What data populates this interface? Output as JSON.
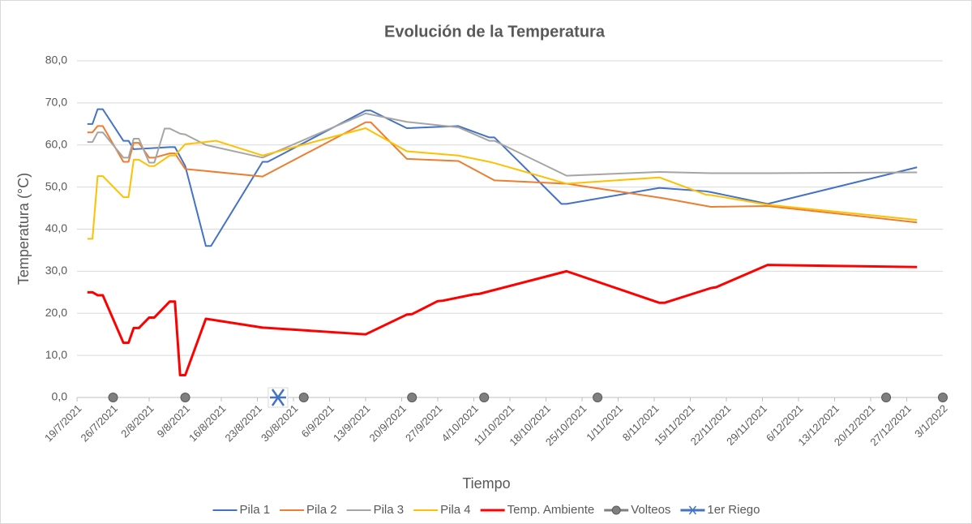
{
  "chart_data": {
    "type": "line",
    "title": "Evolución de la Temperatura",
    "xlabel": "Tiempo",
    "ylabel": "Temperatura (°C)",
    "xlim": [
      "2021-07-19",
      "2022-01-03"
    ],
    "xticks": [
      {
        "value": "2021-07-19",
        "label": "19/7/2021"
      },
      {
        "value": "2021-07-26",
        "label": "26/7/2021"
      },
      {
        "value": "2021-08-02",
        "label": "2/8/2021"
      },
      {
        "value": "2021-08-09",
        "label": "9/8/2021"
      },
      {
        "value": "2021-08-16",
        "label": "16/8/2021"
      },
      {
        "value": "2021-08-23",
        "label": "23/8/2021"
      },
      {
        "value": "2021-08-30",
        "label": "30/8/2021"
      },
      {
        "value": "2021-09-06",
        "label": "6/9/2021"
      },
      {
        "value": "2021-09-13",
        "label": "13/9/2021"
      },
      {
        "value": "2021-09-20",
        "label": "20/9/2021"
      },
      {
        "value": "2021-09-27",
        "label": "27/9/2021"
      },
      {
        "value": "2021-10-04",
        "label": "4/10/2021"
      },
      {
        "value": "2021-10-11",
        "label": "11/10/2021"
      },
      {
        "value": "2021-10-18",
        "label": "18/10/2021"
      },
      {
        "value": "2021-10-25",
        "label": "25/10/2021"
      },
      {
        "value": "2021-11-01",
        "label": "1/11/2021"
      },
      {
        "value": "2021-11-08",
        "label": "8/11/2021"
      },
      {
        "value": "2021-11-15",
        "label": "15/11/2021"
      },
      {
        "value": "2021-11-22",
        "label": "22/11/2021"
      },
      {
        "value": "2021-11-29",
        "label": "29/11/2021"
      },
      {
        "value": "2021-12-06",
        "label": "6/12/2021"
      },
      {
        "value": "2021-12-13",
        "label": "13/12/2021"
      },
      {
        "value": "2021-12-20",
        "label": "20/12/2021"
      },
      {
        "value": "2021-12-27",
        "label": "27/12/2021"
      },
      {
        "value": "2022-01-03",
        "label": "3/1/2022"
      }
    ],
    "ylim": [
      0,
      80
    ],
    "yticks": [
      {
        "value": 0,
        "label": "0,0"
      },
      {
        "value": 10,
        "label": "10,0"
      },
      {
        "value": 20,
        "label": "20,0"
      },
      {
        "value": 30,
        "label": "30,0"
      },
      {
        "value": 40,
        "label": "40,0"
      },
      {
        "value": 50,
        "label": "50,0"
      },
      {
        "value": 60,
        "label": "60,0"
      },
      {
        "value": 70,
        "label": "70,0"
      },
      {
        "value": 80,
        "label": "80,0"
      }
    ],
    "grid": true,
    "legend": "bottom",
    "series": [
      {
        "name": "Pila 1",
        "color": "#4472c4",
        "width": 2,
        "x": [
          "2021-07-21",
          "2021-07-22",
          "2021-07-23",
          "2021-07-24",
          "2021-07-28",
          "2021-07-29",
          "2021-07-30",
          "2021-08-06",
          "2021-08-07",
          "2021-08-09",
          "2021-08-13",
          "2021-08-14",
          "2021-08-24",
          "2021-08-25",
          "2021-09-13",
          "2021-09-14",
          "2021-09-21",
          "2021-10-01",
          "2021-10-07",
          "2021-10-08",
          "2021-10-21",
          "2021-10-22",
          "2021-11-09",
          "2021-11-18",
          "2021-11-19",
          "2021-11-30",
          "2021-12-29"
        ],
        "values": [
          65,
          65,
          68.5,
          68.5,
          61,
          61,
          59,
          59.5,
          59.5,
          55,
          36,
          36,
          56,
          56,
          68.2,
          68.2,
          64,
          64.5,
          61.8,
          61.8,
          46,
          46,
          49.8,
          49,
          48.8,
          46,
          54.7
        ]
      },
      {
        "name": "Pila 2",
        "color": "#ed7d31",
        "width": 2,
        "x": [
          "2021-07-21",
          "2021-07-22",
          "2021-07-23",
          "2021-07-24",
          "2021-07-28",
          "2021-07-29",
          "2021-07-30",
          "2021-07-31",
          "2021-08-02",
          "2021-08-03",
          "2021-08-06",
          "2021-08-07",
          "2021-08-09",
          "2021-08-24",
          "2021-09-13",
          "2021-09-14",
          "2021-09-21",
          "2021-10-01",
          "2021-10-08",
          "2021-10-22",
          "2021-11-09",
          "2021-11-10",
          "2021-11-19",
          "2021-11-30",
          "2021-12-29"
        ],
        "values": [
          63,
          63,
          64.5,
          64.5,
          56,
          56,
          60.5,
          60.5,
          57,
          57,
          58,
          58,
          54.3,
          52.5,
          65.4,
          65.4,
          56.7,
          56.2,
          51.6,
          50.8,
          47.5,
          47.3,
          45.3,
          45.5,
          41.6
        ]
      },
      {
        "name": "Pila 3",
        "color": "#a5a5a5",
        "width": 2,
        "x": [
          "2021-07-21",
          "2021-07-22",
          "2021-07-23",
          "2021-07-24",
          "2021-07-28",
          "2021-07-29",
          "2021-07-30",
          "2021-07-31",
          "2021-08-02",
          "2021-08-03",
          "2021-08-05",
          "2021-08-06",
          "2021-08-08",
          "2021-08-09",
          "2021-08-13",
          "2021-08-24",
          "2021-09-13",
          "2021-09-21",
          "2021-10-01",
          "2021-10-07",
          "2021-10-08",
          "2021-10-22",
          "2021-11-09",
          "2021-11-19",
          "2021-11-30",
          "2021-12-29"
        ],
        "values": [
          60.7,
          60.7,
          63,
          63,
          57,
          57,
          61.5,
          61.5,
          55.8,
          55.8,
          63.9,
          63.9,
          62.7,
          62.5,
          60,
          57,
          67.5,
          65.5,
          64.2,
          61,
          61,
          52.7,
          53.6,
          53.3,
          53.3,
          53.5
        ]
      },
      {
        "name": "Pila 4",
        "color": "#ffc000",
        "width": 2,
        "x": [
          "2021-07-21",
          "2021-07-22",
          "2021-07-23",
          "2021-07-24",
          "2021-07-28",
          "2021-07-29",
          "2021-07-30",
          "2021-07-31",
          "2021-08-02",
          "2021-08-03",
          "2021-08-06",
          "2021-08-07",
          "2021-08-09",
          "2021-08-15",
          "2021-08-24",
          "2021-09-13",
          "2021-09-21",
          "2021-10-01",
          "2021-10-07",
          "2021-10-08",
          "2021-10-22",
          "2021-11-09",
          "2021-11-18",
          "2021-11-19",
          "2021-11-30",
          "2021-12-29"
        ],
        "values": [
          37.7,
          37.7,
          52.6,
          52.6,
          47.6,
          47.6,
          56.5,
          56.5,
          55,
          55,
          57.5,
          57.5,
          60.2,
          61,
          57.5,
          64,
          58.5,
          57.5,
          56,
          55.7,
          50.8,
          52.3,
          48.2,
          48.1,
          45.8,
          42.2
        ]
      },
      {
        "name": "Temp. Ambiente",
        "color": "#ff0000",
        "width": 3,
        "x": [
          "2021-07-21",
          "2021-07-22",
          "2021-07-23",
          "2021-07-24",
          "2021-07-28",
          "2021-07-29",
          "2021-07-30",
          "2021-07-31",
          "2021-08-02",
          "2021-08-03",
          "2021-08-06",
          "2021-08-07",
          "2021-08-08",
          "2021-08-09",
          "2021-08-13",
          "2021-08-24",
          "2021-09-13",
          "2021-09-21",
          "2021-09-22",
          "2021-09-27",
          "2021-09-28",
          "2021-10-04",
          "2021-10-05",
          "2021-10-22",
          "2021-11-09",
          "2021-11-10",
          "2021-11-19",
          "2021-11-20",
          "2021-11-30",
          "2021-12-29"
        ],
        "values": [
          25,
          25,
          24.3,
          24.3,
          13,
          13,
          16.5,
          16.5,
          19,
          19,
          22.8,
          22.8,
          5.3,
          5.3,
          18.7,
          16.6,
          15,
          19.7,
          19.8,
          22.9,
          23,
          24.5,
          24.6,
          30,
          22.5,
          22.5,
          26,
          26.2,
          31.5,
          31
        ]
      },
      {
        "name": "Volteos",
        "color": "#7f7f7f",
        "marker": "circle",
        "line": false,
        "x": [
          "2021-07-26",
          "2021-08-09",
          "2021-09-01",
          "2021-09-22",
          "2021-10-06",
          "2021-10-28",
          "2021-12-23",
          "2022-01-03"
        ],
        "values": [
          0,
          0,
          0,
          0,
          0,
          0,
          0,
          0
        ]
      },
      {
        "name": "1er Riego",
        "color": "#4472c4",
        "marker": "star",
        "line": false,
        "x": [
          "2021-08-27"
        ],
        "values": [
          0
        ]
      }
    ]
  }
}
